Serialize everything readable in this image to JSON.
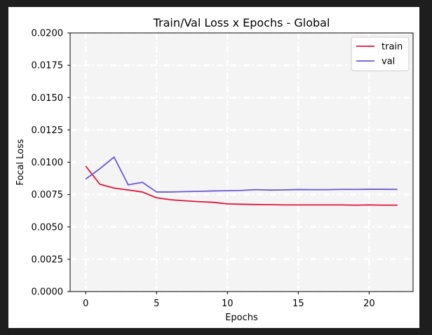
{
  "colors": {
    "window_background": "#1e1e1e",
    "figure_background": "#ffffff",
    "plot_background": "#f4f4f4",
    "grid": "#ffffff",
    "train": "#dc143c",
    "val": "#6a5acd"
  },
  "chart_data": {
    "type": "line",
    "title": "Train/Val Loss x Epochs - Global",
    "xlabel": "Epochs",
    "ylabel": "Focal Loss",
    "xlim": [
      -1.1,
      23.1
    ],
    "ylim": [
      0.0,
      0.02
    ],
    "xticks": [
      0,
      5,
      10,
      15,
      20
    ],
    "yticks": [
      0.0,
      0.0025,
      0.005,
      0.0075,
      0.01,
      0.0125,
      0.015,
      0.0175,
      0.02
    ],
    "xtick_labels": [
      "0",
      "5",
      "10",
      "15",
      "20"
    ],
    "ytick_labels": [
      "0.0000",
      "0.0025",
      "0.0050",
      "0.0075",
      "0.0100",
      "0.0125",
      "0.0150",
      "0.0175",
      "0.0200"
    ],
    "grid": true,
    "grid_style": "dash-dot",
    "legend_position": "top-right",
    "x": [
      0,
      1,
      2,
      3,
      4,
      5,
      6,
      7,
      8,
      9,
      10,
      11,
      12,
      13,
      14,
      15,
      16,
      17,
      18,
      19,
      20,
      21,
      22
    ],
    "series": [
      {
        "name": "train",
        "color": "#dc143c",
        "values": [
          0.0097,
          0.0083,
          0.008,
          0.00785,
          0.0077,
          0.00725,
          0.0071,
          0.00702,
          0.00695,
          0.0069,
          0.00678,
          0.00675,
          0.00673,
          0.00672,
          0.0067,
          0.0067,
          0.0067,
          0.0067,
          0.0067,
          0.00668,
          0.0067,
          0.00668,
          0.00668
        ]
      },
      {
        "name": "val",
        "color": "#6a5acd",
        "values": [
          0.0087,
          0.0095,
          0.0104,
          0.00825,
          0.00845,
          0.0077,
          0.0077,
          0.00773,
          0.00775,
          0.00778,
          0.0078,
          0.00782,
          0.00788,
          0.00785,
          0.00786,
          0.00789,
          0.00788,
          0.00788,
          0.0079,
          0.0079,
          0.00791,
          0.00791,
          0.0079
        ]
      }
    ]
  }
}
